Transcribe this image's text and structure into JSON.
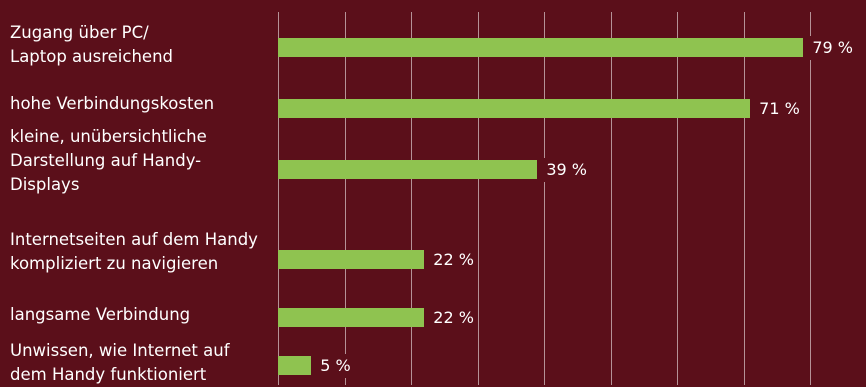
{
  "chart_data": {
    "type": "bar",
    "orientation": "horizontal",
    "unit": "%",
    "categories": [
      "Zugang über PC/\nLaptop ausreichend",
      "hohe Verbindungskosten",
      "kleine, unübersichtliche\nDarstellung auf Handy-\nDisplays",
      "Internetseiten auf dem Handy\nkompliziert zu navigieren",
      "langsame Verbindung",
      "Unwissen, wie Internet auf\ndem Handy funktioniert"
    ],
    "values": [
      79,
      71,
      39,
      22,
      22,
      5
    ],
    "value_labels": [
      "79 %",
      "71 %",
      "39 %",
      "22 %",
      "22 %",
      "5 %"
    ],
    "xlim": [
      0,
      80
    ],
    "grid": true,
    "colors": {
      "background": "#5b0f1a",
      "bar": "#8fc350",
      "text": "#ffffff",
      "grid": "rgba(255,255,255,0.55)"
    }
  }
}
